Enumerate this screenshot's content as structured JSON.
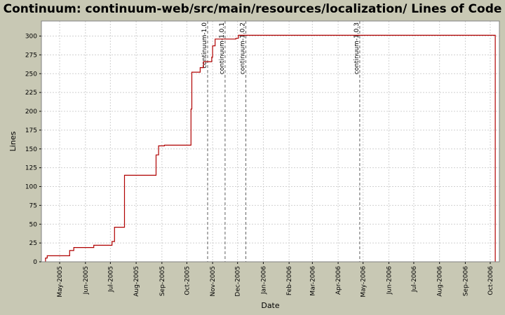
{
  "chart_data": {
    "type": "line",
    "title": "Continuum: continuum-web/src/main/resources/localization/ Lines of Code",
    "xlabel": "Date",
    "ylabel": "Lines",
    "xlim": [
      "2005-04-09",
      "2006-10-12"
    ],
    "ylim": [
      0,
      320
    ],
    "y_ticks": [
      0,
      25,
      50,
      75,
      100,
      125,
      150,
      175,
      200,
      225,
      250,
      275,
      300
    ],
    "x_ticks": [
      {
        "date": "2005-05-01",
        "label": "May-2005"
      },
      {
        "date": "2005-06-01",
        "label": "Jun-2005"
      },
      {
        "date": "2005-07-01",
        "label": "Jul-2005"
      },
      {
        "date": "2005-08-01",
        "label": "Aug-2005"
      },
      {
        "date": "2005-09-01",
        "label": "Sep-2005"
      },
      {
        "date": "2005-10-01",
        "label": "Oct-2005"
      },
      {
        "date": "2005-11-01",
        "label": "Nov-2005"
      },
      {
        "date": "2005-12-01",
        "label": "Dec-2005"
      },
      {
        "date": "2006-01-01",
        "label": "Jan-2006"
      },
      {
        "date": "2006-02-01",
        "label": "Feb-2006"
      },
      {
        "date": "2006-03-01",
        "label": "Mar-2006"
      },
      {
        "date": "2006-04-01",
        "label": "Apr-2006"
      },
      {
        "date": "2006-05-01",
        "label": "May-2006"
      },
      {
        "date": "2006-06-01",
        "label": "Jun-2006"
      },
      {
        "date": "2006-07-01",
        "label": "Jul-2006"
      },
      {
        "date": "2006-08-01",
        "label": "Aug-2006"
      },
      {
        "date": "2006-09-01",
        "label": "Sep-2006"
      },
      {
        "date": "2006-10-01",
        "label": "Oct-2006"
      }
    ],
    "grid": true,
    "series": [
      {
        "color": "#b00000",
        "step": true,
        "points": [
          {
            "x": "2005-04-14",
            "y": 0
          },
          {
            "x": "2005-04-14",
            "y": 5
          },
          {
            "x": "2005-04-16",
            "y": 8
          },
          {
            "x": "2005-05-13",
            "y": 15
          },
          {
            "x": "2005-05-18",
            "y": 19
          },
          {
            "x": "2005-06-11",
            "y": 22
          },
          {
            "x": "2005-07-03",
            "y": 27
          },
          {
            "x": "2005-07-06",
            "y": 46
          },
          {
            "x": "2005-07-18",
            "y": 115
          },
          {
            "x": "2005-08-25",
            "y": 142
          },
          {
            "x": "2005-08-28",
            "y": 154
          },
          {
            "x": "2005-09-04",
            "y": 155
          },
          {
            "x": "2005-10-06",
            "y": 203
          },
          {
            "x": "2005-10-07",
            "y": 252
          },
          {
            "x": "2005-10-17",
            "y": 258
          },
          {
            "x": "2005-10-21",
            "y": 266
          },
          {
            "x": "2005-10-31",
            "y": 272
          },
          {
            "x": "2005-11-01",
            "y": 287
          },
          {
            "x": "2005-11-04",
            "y": 296
          },
          {
            "x": "2005-11-29",
            "y": 297
          },
          {
            "x": "2005-12-02",
            "y": 301
          },
          {
            "x": "2006-10-07",
            "y": 301
          },
          {
            "x": "2006-10-07",
            "y": 0
          }
        ]
      }
    ],
    "markers": [
      {
        "date": "2005-10-26",
        "label": "continuum-1.0"
      },
      {
        "date": "2005-11-16",
        "label": "continuum-1.0.1"
      },
      {
        "date": "2005-12-11",
        "label": "continuum-1.0.2"
      },
      {
        "date": "2006-04-27",
        "label": "continuum-1.0.3"
      }
    ]
  },
  "colors": {
    "background": "#c8c8b4",
    "plot_background": "#ffffff",
    "grid": "#d0d0d0",
    "line": "#b00000",
    "marker": "#606060"
  }
}
